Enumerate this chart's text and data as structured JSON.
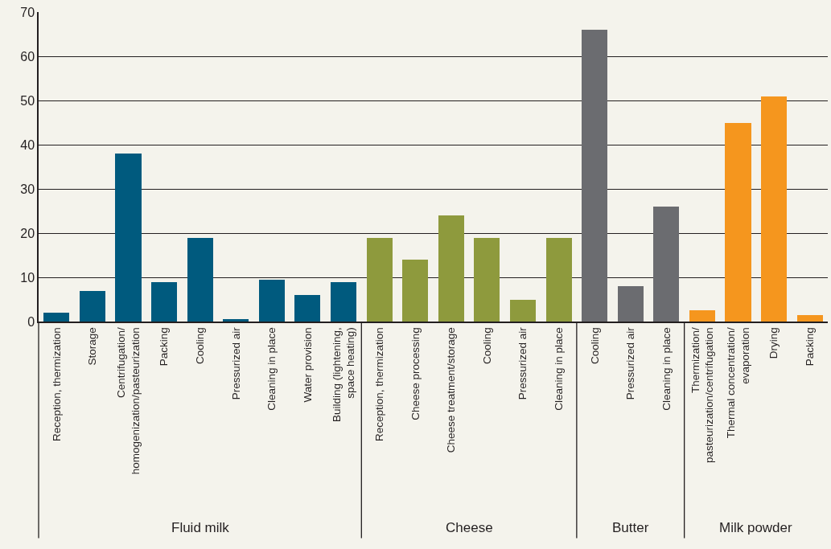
{
  "chart_data": {
    "type": "bar",
    "categories": [
      "Reception, thermization",
      "Storage",
      "Centrifugation/\nhomogenization/pasteurization",
      "Packing",
      "Cooling",
      "Pressurized air",
      "Cleaning in place",
      "Water provision",
      "Building (lightening,\nspace heating)",
      "Reception, thermization",
      "Cheese processing",
      "Cheese treatment/storage",
      "Cooling",
      "Pressurized air",
      "Cleaning in place",
      "Cooling",
      "Pressurized air",
      "Cleaning in place",
      "Thermization/\npasteurization/centrifugation",
      "Thermal concentration/\nevaporation",
      "Drying",
      "Packing"
    ],
    "series": [
      {
        "color": "#005a7e",
        "values": [
          2,
          7,
          38,
          9,
          19,
          0.5,
          9.5,
          6,
          9,
          null,
          null,
          null,
          null,
          null,
          null,
          null,
          null,
          null,
          null,
          null,
          null,
          null
        ]
      },
      {
        "color": "#8e9a3d",
        "values": [
          null,
          null,
          null,
          null,
          null,
          null,
          null,
          null,
          null,
          19,
          14,
          24,
          19,
          5,
          19,
          null,
          null,
          null,
          null,
          null,
          null,
          null
        ]
      },
      {
        "color": "#6b6c70",
        "values": [
          null,
          null,
          null,
          null,
          null,
          null,
          null,
          null,
          null,
          null,
          null,
          null,
          null,
          null,
          null,
          66,
          8,
          26,
          null,
          null,
          null,
          null
        ]
      },
      {
        "color": "#f5961e",
        "values": [
          null,
          null,
          null,
          null,
          null,
          null,
          null,
          null,
          null,
          null,
          null,
          null,
          null,
          null,
          null,
          null,
          null,
          null,
          2.5,
          45,
          51,
          1.5
        ]
      }
    ],
    "annotations": [
      "Fluid milk",
      "Cheese",
      "Butter",
      "Milk powder"
    ],
    "ylim": [
      0,
      70
    ],
    "yticks": [
      0,
      10,
      20,
      30,
      40,
      50,
      60,
      70
    ],
    "grid": "y",
    "legend": false
  }
}
